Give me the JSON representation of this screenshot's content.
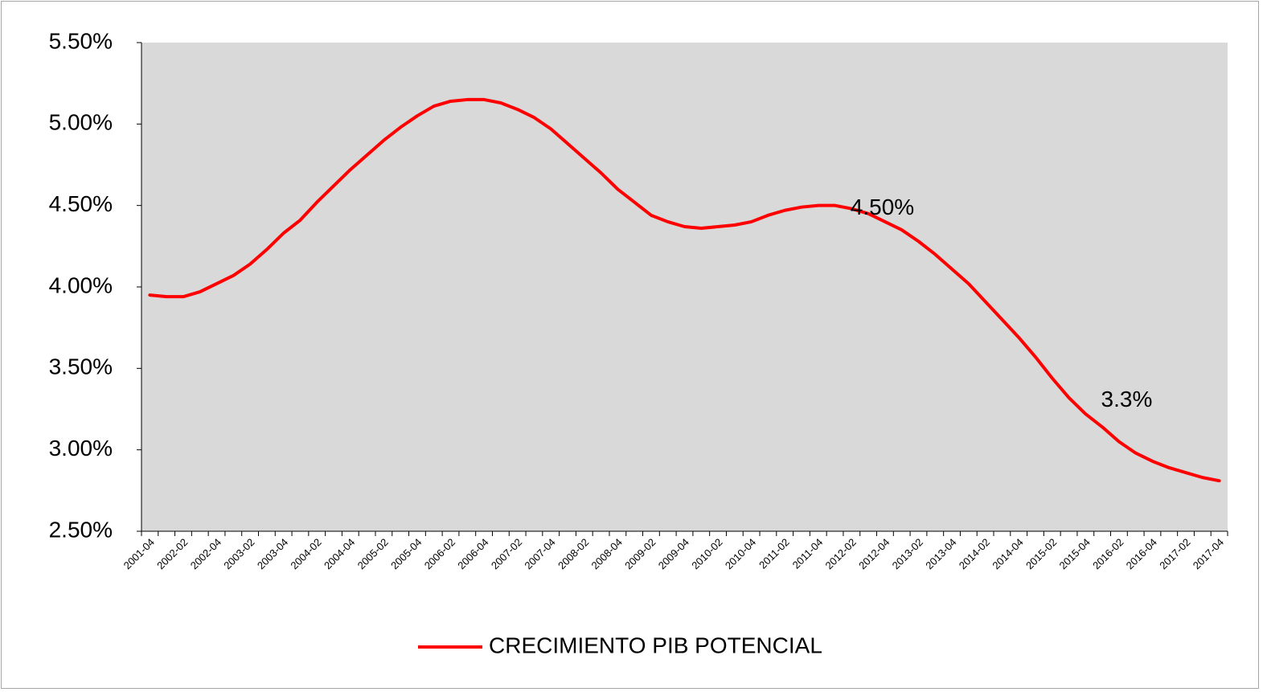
{
  "chart_data": {
    "type": "line",
    "categories": [
      "2001-04",
      null,
      "2002-02",
      null,
      "2002-04",
      null,
      "2003-02",
      null,
      "2003-04",
      null,
      "2004-02",
      null,
      "2004-04",
      null,
      "2005-02",
      null,
      "2005-04",
      null,
      "2006-02",
      null,
      "2006-04",
      null,
      "2007-02",
      null,
      "2007-04",
      null,
      "2008-02",
      null,
      "2008-04",
      null,
      "2009-02",
      null,
      "2009-04",
      null,
      "2010-02",
      null,
      "2010-04",
      null,
      "2011-02",
      null,
      "2011-04",
      null,
      "2012-02",
      null,
      "2012-04",
      null,
      "2013-02",
      null,
      "2013-04",
      null,
      "2014-02",
      null,
      "2014-04",
      null,
      "2015-02",
      null,
      "2015-04",
      null,
      "2016-02",
      null,
      "2016-04",
      null,
      "2017-02",
      null,
      "2017-04"
    ],
    "series": [
      {
        "name": "CRECIMIENTO PIB POTENCIAL",
        "color": "#ff0000",
        "values": [
          3.95,
          3.94,
          3.94,
          3.97,
          4.02,
          4.07,
          4.14,
          4.23,
          4.33,
          4.41,
          4.52,
          4.62,
          4.72,
          4.81,
          4.9,
          4.98,
          5.05,
          5.11,
          5.14,
          5.15,
          5.15,
          5.13,
          5.09,
          5.04,
          4.97,
          4.88,
          4.79,
          4.7,
          4.6,
          4.52,
          4.44,
          4.4,
          4.37,
          4.36,
          4.37,
          4.38,
          4.4,
          4.44,
          4.47,
          4.49,
          4.5,
          4.5,
          4.48,
          4.45,
          4.4,
          4.35,
          4.28,
          4.2,
          4.11,
          4.02,
          3.91,
          3.8,
          3.69,
          3.57,
          3.44,
          3.32,
          3.22,
          3.14,
          3.05,
          2.98,
          2.93,
          2.89,
          2.86,
          2.83,
          2.81
        ],
        "value_labels": [
          null,
          null,
          null,
          null,
          null,
          null,
          null,
          null,
          null,
          null,
          null,
          null,
          null,
          null,
          null,
          null,
          null,
          null,
          null,
          null,
          null,
          null,
          null,
          null,
          null,
          null,
          null,
          null,
          null,
          null,
          null,
          null,
          null,
          null,
          null,
          null,
          null,
          null,
          null,
          null,
          "4.50%",
          null,
          null,
          null,
          null,
          null,
          null,
          null,
          null,
          null,
          null,
          null,
          null,
          null,
          null,
          "3.3%",
          null,
          null,
          null,
          null,
          null,
          null,
          null,
          null,
          null
        ]
      }
    ],
    "ylim": [
      2.5,
      5.5
    ],
    "yticks": [
      {
        "value": 2.5,
        "label": "2.50%"
      },
      {
        "value": 3.0,
        "label": "3.00%"
      },
      {
        "value": 3.5,
        "label": "3.50%"
      },
      {
        "value": 4.0,
        "label": "4.00%"
      },
      {
        "value": 4.5,
        "label": "4.50%"
      },
      {
        "value": 5.0,
        "label": "5.00%"
      },
      {
        "value": 5.5,
        "label": "5.50%"
      }
    ],
    "grid": false,
    "legend": "bottom"
  }
}
